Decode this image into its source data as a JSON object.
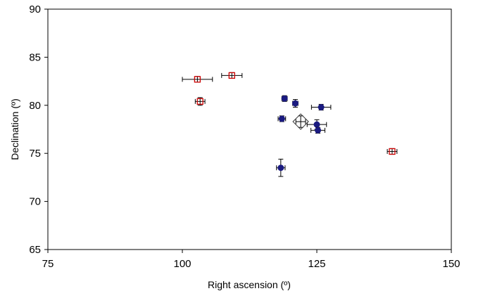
{
  "chart_data": {
    "type": "scatter",
    "title": "",
    "xlabel": "Right ascension (º)",
    "ylabel": "Declination (º)",
    "xlim": [
      75,
      150
    ],
    "ylim": [
      65,
      90
    ],
    "xticks": [
      "75",
      "100",
      "125",
      "150"
    ],
    "yticks": [
      "65",
      "70",
      "75",
      "80",
      "85",
      "90"
    ],
    "grid": false,
    "legend": "none",
    "series": [
      {
        "marker": "filled-circle",
        "color": "#1a1a80",
        "points": [
          {
            "x": 119.0,
            "y": 80.7,
            "xerr": 0.5,
            "yerr": 0.3
          },
          {
            "x": 121.0,
            "y": 80.2,
            "xerr": 0.5,
            "yerr": 0.4
          },
          {
            "x": 125.8,
            "y": 79.8,
            "xerr": 1.8,
            "yerr": 0.3
          },
          {
            "x": 118.5,
            "y": 78.6,
            "xerr": 0.7,
            "yerr": 0.3
          },
          {
            "x": 125.0,
            "y": 78.0,
            "xerr": 1.8,
            "yerr": 0.5
          },
          {
            "x": 125.2,
            "y": 77.4,
            "xerr": 1.3,
            "yerr": 0.3
          },
          {
            "x": 118.3,
            "y": 73.5,
            "xerr": 0.8,
            "yerr": 0.9
          }
        ]
      },
      {
        "marker": "open-square",
        "color": "#cc0000",
        "points": [
          {
            "x": 102.8,
            "y": 82.7,
            "xerr": 2.8,
            "yerr": 0.3
          },
          {
            "x": 109.2,
            "y": 83.1,
            "xerr": 1.9,
            "yerr": 0.3
          },
          {
            "x": 103.3,
            "y": 80.4,
            "xerr": 0.9,
            "yerr": 0.4
          },
          {
            "x": 139.0,
            "y": 75.2,
            "xerr": 0.9,
            "yerr": 0.3
          }
        ]
      },
      {
        "marker": "open-diamond",
        "color": "#333333",
        "points": [
          {
            "x": 122.0,
            "y": 78.3,
            "xerr": 0.9,
            "yerr": 0.6
          }
        ]
      }
    ]
  }
}
